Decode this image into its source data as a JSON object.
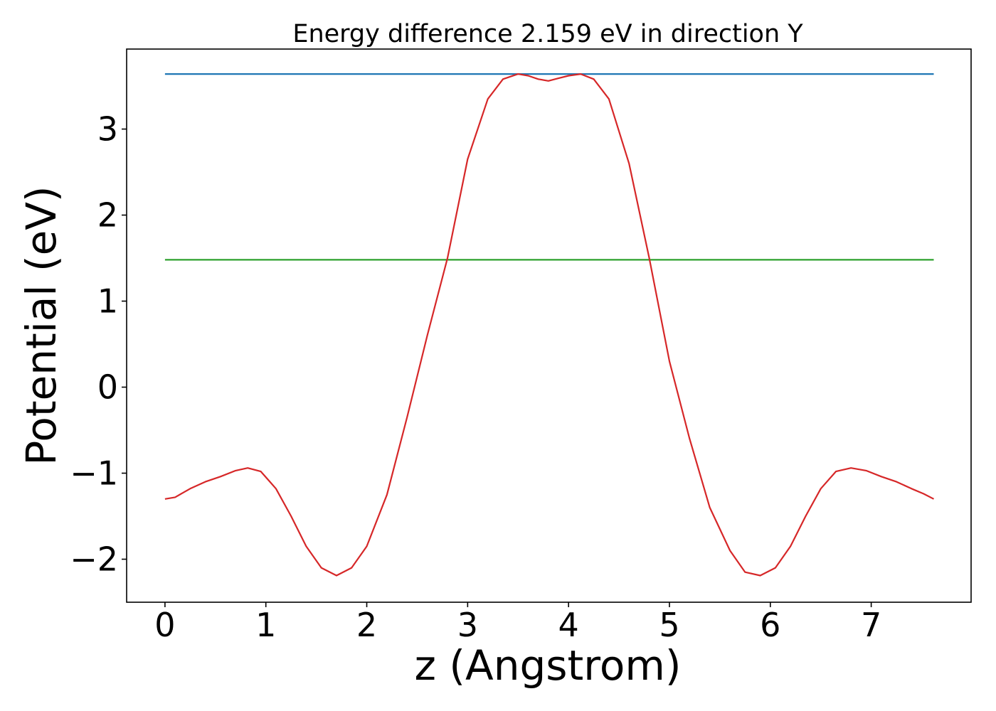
{
  "chart_data": {
    "type": "line",
    "title": "Energy difference 2.159 eV in direction Y",
    "xlabel": "z (Angstrom)",
    "ylabel": "Potential (eV)",
    "xlim": [
      -0.38,
      7.99
    ],
    "ylim": [
      -2.5,
      3.93
    ],
    "xticks": [
      0,
      1,
      2,
      3,
      4,
      5,
      6,
      7
    ],
    "yticks": [
      -2,
      -1,
      0,
      1,
      2,
      3
    ],
    "ytick_labels": [
      "−2",
      "−1",
      "0",
      "1",
      "2",
      "3"
    ],
    "grid": false,
    "legend": "none",
    "series": [
      {
        "color": "#1f77b4",
        "x": [
          0,
          7.62
        ],
        "y": [
          3.64,
          3.64
        ]
      },
      {
        "color": "#2ca02c",
        "x": [
          0,
          7.62
        ],
        "y": [
          1.48,
          1.48
        ]
      },
      {
        "color": "#d62728",
        "x": [
          0,
          0.1,
          0.25,
          0.4,
          0.55,
          0.7,
          0.82,
          0.95,
          1.1,
          1.25,
          1.4,
          1.55,
          1.7,
          1.85,
          2.0,
          2.2,
          2.4,
          2.6,
          2.8,
          3.0,
          3.2,
          3.35,
          3.5,
          3.6,
          3.7,
          3.8,
          3.9,
          4.0,
          4.12,
          4.25,
          4.4,
          4.6,
          4.8,
          5.0,
          5.2,
          5.4,
          5.6,
          5.75,
          5.9,
          6.05,
          6.2,
          6.35,
          6.5,
          6.65,
          6.8,
          6.95,
          7.1,
          7.25,
          7.4,
          7.52,
          7.62
        ],
        "y": [
          -1.3,
          -1.28,
          -1.18,
          -1.1,
          -1.04,
          -0.97,
          -0.94,
          -0.98,
          -1.18,
          -1.5,
          -1.85,
          -2.1,
          -2.19,
          -2.1,
          -1.85,
          -1.25,
          -0.35,
          0.6,
          1.5,
          2.65,
          3.35,
          3.58,
          3.64,
          3.62,
          3.58,
          3.56,
          3.59,
          3.62,
          3.64,
          3.58,
          3.35,
          2.6,
          1.5,
          0.3,
          -0.6,
          -1.4,
          -1.9,
          -2.15,
          -2.19,
          -2.1,
          -1.85,
          -1.5,
          -1.18,
          -0.98,
          -0.94,
          -0.97,
          -1.04,
          -1.1,
          -1.18,
          -1.24,
          -1.3
        ]
      }
    ]
  }
}
